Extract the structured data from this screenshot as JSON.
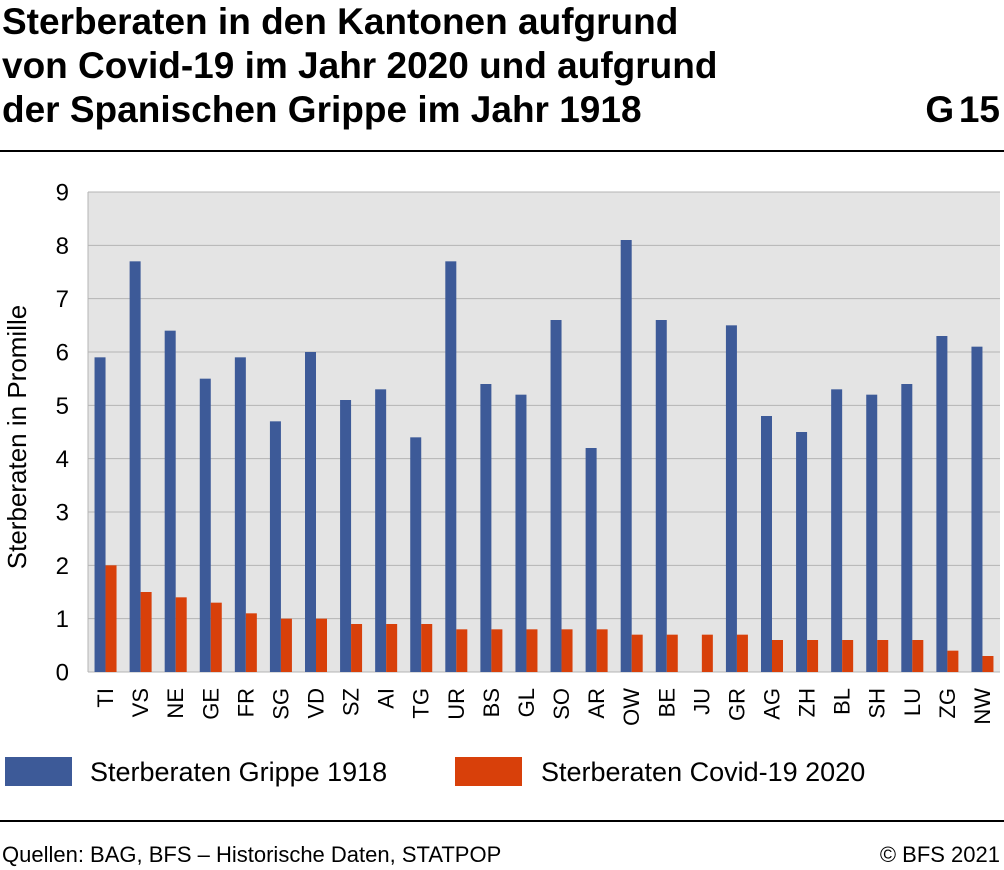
{
  "header": {
    "figure_number": "G 15"
  },
  "chart_data": {
    "type": "bar",
    "title": "Sterberaten in den Kantonen aufgrund von Covid-19 im Jahr 2020 und aufgrund der Spanischen Grippe im Jahr 1918",
    "ylabel": "Sterberaten in Promille",
    "ylim": [
      0,
      9
    ],
    "yticks": [
      0,
      1,
      2,
      3,
      4,
      5,
      6,
      7,
      8,
      9
    ],
    "grid": true,
    "legend_position": "bottom",
    "plot_background_color": "#e4e4e4",
    "grid_color": "#b4b4b4",
    "categories": [
      "TI",
      "VS",
      "NE",
      "GE",
      "FR",
      "SG",
      "VD",
      "SZ",
      "AI",
      "TG",
      "UR",
      "BS",
      "GL",
      "SO",
      "AR",
      "OW",
      "BE",
      "JU",
      "GR",
      "AG",
      "ZH",
      "BL",
      "SH",
      "LU",
      "ZG",
      "NW"
    ],
    "series": [
      {
        "name": "Sterberaten Grippe 1918",
        "color": "#3d5a98",
        "values": [
          5.9,
          7.7,
          6.4,
          5.5,
          5.9,
          4.7,
          6.0,
          5.1,
          5.3,
          4.4,
          7.7,
          5.4,
          5.2,
          6.6,
          4.2,
          8.1,
          6.6,
          null,
          6.5,
          4.8,
          4.5,
          5.3,
          5.2,
          5.4,
          6.3,
          6.1
        ]
      },
      {
        "name": "Sterberaten Covid-19 2020",
        "color": "#d8400a",
        "values": [
          2.0,
          1.5,
          1.4,
          1.3,
          1.1,
          1.0,
          1.0,
          0.9,
          0.9,
          0.9,
          0.8,
          0.8,
          0.8,
          0.8,
          0.8,
          0.7,
          0.7,
          0.7,
          0.7,
          0.6,
          0.6,
          0.6,
          0.6,
          0.6,
          0.4,
          0.3
        ]
      }
    ]
  },
  "footer": {
    "source": "Quellen: BAG, BFS – Historische Daten, STATPOP",
    "copyright": "© BFS 2021"
  }
}
